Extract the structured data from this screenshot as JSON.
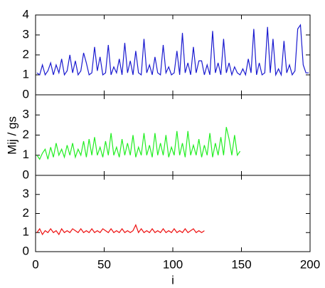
{
  "chart_data": [
    {
      "type": "line",
      "xlim": [
        0,
        200
      ],
      "ylim": [
        0,
        4
      ],
      "yticks": [
        0,
        1,
        2,
        3,
        4
      ],
      "xticks": [
        0,
        50,
        100,
        150,
        200
      ],
      "xtick_labels": false,
      "x": [
        1,
        3,
        5,
        7,
        9,
        11,
        13,
        15,
        17,
        19,
        21,
        23,
        25,
        27,
        29,
        31,
        33,
        35,
        37,
        39,
        41,
        43,
        45,
        47,
        49,
        51,
        53,
        55,
        57,
        59,
        61,
        63,
        65,
        67,
        69,
        71,
        73,
        75,
        77,
        79,
        81,
        83,
        85,
        87,
        89,
        91,
        93,
        95,
        97,
        99,
        101,
        103,
        105,
        107,
        109,
        111,
        113,
        115,
        117,
        119,
        121,
        123,
        125,
        127,
        129,
        131,
        133,
        135,
        137,
        139,
        141,
        143,
        145,
        147,
        149,
        151,
        153,
        155,
        157,
        159,
        161,
        163,
        165,
        167,
        169,
        171,
        173,
        175,
        177,
        179,
        181,
        183,
        185,
        187,
        189,
        191,
        193,
        195,
        197,
        199
      ],
      "series": [
        {
          "color": "#1a1ad0",
          "values": [
            1.1,
            1.0,
            1.5,
            1.0,
            1.2,
            1.6,
            1.0,
            1.5,
            1.1,
            1.8,
            1.0,
            1.2,
            2.0,
            1.1,
            1.7,
            1.0,
            1.2,
            2.1,
            1.6,
            1.0,
            1.1,
            2.4,
            1.2,
            1.9,
            1.0,
            1.1,
            2.5,
            1.0,
            1.4,
            1.1,
            1.8,
            1.0,
            2.6,
            1.1,
            1.7,
            1.0,
            2.2,
            1.1,
            1.0,
            2.8,
            1.1,
            1.5,
            1.0,
            1.9,
            1.1,
            1.0,
            2.5,
            1.1,
            1.4,
            1.0,
            1.1,
            2.2,
            1.0,
            3.1,
            1.1,
            1.6,
            1.0,
            2.4,
            1.1,
            1.7,
            1.7,
            1.0,
            1.5,
            1.0,
            3.2,
            1.1,
            1.6,
            1.0,
            2.8,
            1.1,
            1.6,
            1.0,
            1.4,
            1.1,
            1.0,
            1.3,
            1.0,
            1.8,
            1.1,
            3.3,
            1.0,
            1.6,
            1.0,
            1.1,
            3.4,
            1.1,
            2.8,
            1.0,
            1.3,
            1.0,
            2.7,
            1.1,
            1.5,
            1.0,
            1.2,
            3.3,
            3.5,
            1.5,
            1.1,
            1.1
          ]
        }
      ]
    },
    {
      "type": "line",
      "xlim": [
        0,
        200
      ],
      "ylim": [
        0,
        4
      ],
      "yticks": [
        0,
        1,
        2,
        3
      ],
      "xticks": [
        0,
        50,
        100,
        150,
        200
      ],
      "xtick_labels": false,
      "ylabel": "Mij / gs",
      "x": [
        1,
        3,
        5,
        7,
        9,
        11,
        13,
        15,
        17,
        19,
        21,
        23,
        25,
        27,
        29,
        31,
        33,
        35,
        37,
        39,
        41,
        43,
        45,
        47,
        49,
        51,
        53,
        55,
        57,
        59,
        61,
        63,
        65,
        67,
        69,
        71,
        73,
        75,
        77,
        79,
        81,
        83,
        85,
        87,
        89,
        91,
        93,
        95,
        97,
        99,
        101,
        103,
        105,
        107,
        109,
        111,
        113,
        115,
        117,
        119,
        121,
        123,
        125,
        127,
        129,
        131,
        133,
        135,
        137,
        139,
        141,
        143,
        145,
        147,
        149
      ],
      "series": [
        {
          "color": "#22ee22",
          "values": [
            1.0,
            0.8,
            1.1,
            1.3,
            0.8,
            1.4,
            0.9,
            1.6,
            1.0,
            1.3,
            0.9,
            1.5,
            1.0,
            1.6,
            0.9,
            1.3,
            1.0,
            1.7,
            0.9,
            1.8,
            1.0,
            1.9,
            1.0,
            1.4,
            0.9,
            1.7,
            1.0,
            2.1,
            1.0,
            1.4,
            0.9,
            1.8,
            1.0,
            1.6,
            1.0,
            2.0,
            0.9,
            1.4,
            1.0,
            2.1,
            1.0,
            1.5,
            0.9,
            2.1,
            1.0,
            1.6,
            1.0,
            2.0,
            0.9,
            1.4,
            1.0,
            2.2,
            1.0,
            1.6,
            0.9,
            2.2,
            1.0,
            1.5,
            1.0,
            1.8,
            0.9,
            1.5,
            1.0,
            2.1,
            0.9,
            1.6,
            1.0,
            1.9,
            1.0,
            2.4,
            1.8,
            1.0,
            2.0,
            1.0,
            1.2
          ]
        }
      ]
    },
    {
      "type": "line",
      "xlim": [
        0,
        200
      ],
      "ylim": [
        0,
        4
      ],
      "yticks": [
        0,
        1,
        2,
        3
      ],
      "xticks": [
        0,
        50,
        100,
        150,
        200
      ],
      "xtick_labels": true,
      "xlabel": "i",
      "x": [
        1,
        3,
        5,
        7,
        9,
        11,
        13,
        15,
        17,
        19,
        21,
        23,
        25,
        27,
        29,
        31,
        33,
        35,
        37,
        39,
        41,
        43,
        45,
        47,
        49,
        51,
        53,
        55,
        57,
        59,
        61,
        63,
        65,
        67,
        69,
        71,
        73,
        75,
        77,
        79,
        81,
        83,
        85,
        87,
        89,
        91,
        93,
        95,
        97,
        99,
        101,
        103,
        105,
        107,
        109,
        111,
        113,
        115,
        117,
        119,
        121,
        123
      ],
      "series": [
        {
          "color": "#ee1111",
          "values": [
            1.0,
            1.2,
            0.9,
            1.1,
            1.0,
            1.2,
            1.0,
            1.1,
            0.9,
            1.2,
            1.0,
            1.1,
            1.0,
            1.2,
            1.1,
            1.0,
            1.2,
            1.0,
            1.1,
            1.0,
            1.2,
            1.0,
            1.1,
            1.0,
            1.2,
            1.1,
            1.0,
            1.2,
            1.0,
            1.1,
            1.0,
            1.2,
            1.0,
            1.1,
            1.0,
            1.1,
            1.4,
            1.0,
            1.2,
            1.0,
            1.1,
            1.0,
            1.2,
            1.0,
            1.1,
            1.0,
            1.2,
            1.0,
            1.1,
            1.0,
            1.2,
            1.0,
            1.1,
            1.0,
            1.2,
            1.0,
            1.1,
            1.2,
            1.0,
            1.1,
            1.0,
            1.1
          ]
        }
      ]
    }
  ]
}
